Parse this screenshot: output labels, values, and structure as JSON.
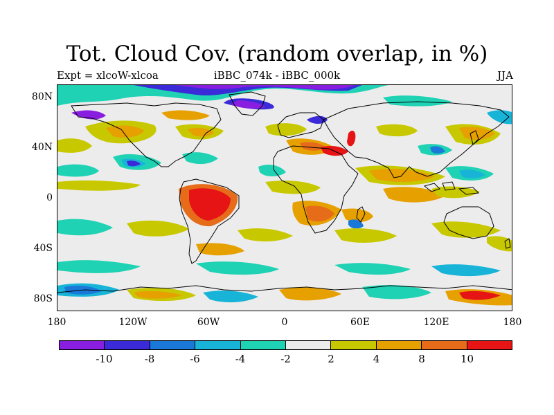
{
  "title": "Tot. Cloud Cov. (random overlap, in %)",
  "subtitle_left": "Expt = xlcoW-xlcoa",
  "subtitle_center": "iBBC_074k - iBBC_000k",
  "subtitle_right": "JJA",
  "axes": {
    "y_ticks": [
      "80N",
      "40N",
      "0",
      "40S",
      "80S"
    ],
    "x_ticks": [
      "180",
      "120W",
      "60W",
      "0",
      "60E",
      "120E",
      "180"
    ]
  },
  "colorbar": {
    "colors": [
      "#8a1ee0",
      "#3a2ad8",
      "#1a78d8",
      "#18b4d8",
      "#20d2b4",
      "#ececec",
      "#c8c800",
      "#e6a000",
      "#e66c1a",
      "#e61414"
    ],
    "labels": [
      "-10",
      "-8",
      "-6",
      "-4",
      "-2",
      "2",
      "4",
      "8",
      "10"
    ]
  },
  "map": {
    "projection": "cylindrical-equidistant",
    "lon_range": [
      -180,
      180
    ],
    "lat_range": [
      -90,
      90
    ],
    "background_color": "#ececec"
  }
}
